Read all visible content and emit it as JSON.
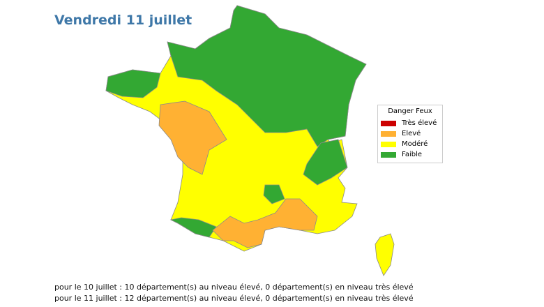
{
  "header": {
    "title": "Vendredi 11 juillet"
  },
  "legend": {
    "title": "Danger Feux",
    "items": [
      {
        "label": "Très élevé",
        "color": "#cc0000"
      },
      {
        "label": "Elevé",
        "color": "#ffb133"
      },
      {
        "label": "Modéré",
        "color": "#ffff00"
      },
      {
        "label": "Faible",
        "color": "#33a833"
      }
    ]
  },
  "notes": [
    "pour le 10 juillet : 10 département(s) au niveau élevé, 0 département(s) en niveau très élevé",
    "pour le 11 juillet : 12 département(s) au niveau élevé, 0 département(s) en niveau très élevé"
  ]
}
